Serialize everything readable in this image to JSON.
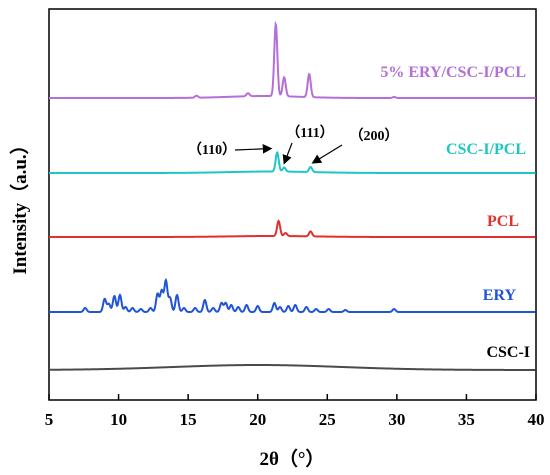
{
  "chart_data": {
    "type": "line",
    "xlabel": "2θ（°）",
    "ylabel": "Intensity（a.u.）",
    "xlim": [
      5,
      40
    ],
    "xticks": [
      5,
      10,
      15,
      20,
      25,
      30,
      35,
      40
    ],
    "grid": false,
    "series": [
      {
        "name": "CSC-I",
        "color": "#4a4a4a",
        "offset": 0,
        "baseline": 2,
        "hump": {
          "center": 20,
          "width": 6,
          "height": 5
        },
        "peaks": []
      },
      {
        "name": "ERY",
        "color": "#1f55d6",
        "offset": 58,
        "baseline": 2,
        "hump": null,
        "peaks": [
          {
            "x": 7.6,
            "h": 4
          },
          {
            "x": 9.0,
            "h": 13
          },
          {
            "x": 9.3,
            "h": 8
          },
          {
            "x": 9.7,
            "h": 16
          },
          {
            "x": 10.1,
            "h": 17
          },
          {
            "x": 10.5,
            "h": 5
          },
          {
            "x": 11.0,
            "h": 4
          },
          {
            "x": 11.6,
            "h": 3
          },
          {
            "x": 12.3,
            "h": 4
          },
          {
            "x": 12.8,
            "h": 18
          },
          {
            "x": 13.1,
            "h": 21
          },
          {
            "x": 13.4,
            "h": 31
          },
          {
            "x": 13.7,
            "h": 14
          },
          {
            "x": 14.2,
            "h": 17
          },
          {
            "x": 14.7,
            "h": 4
          },
          {
            "x": 15.5,
            "h": 4
          },
          {
            "x": 16.2,
            "h": 12
          },
          {
            "x": 16.8,
            "h": 4
          },
          {
            "x": 17.4,
            "h": 9
          },
          {
            "x": 17.7,
            "h": 9
          },
          {
            "x": 18.1,
            "h": 7
          },
          {
            "x": 18.6,
            "h": 5
          },
          {
            "x": 19.2,
            "h": 7
          },
          {
            "x": 20.0,
            "h": 6
          },
          {
            "x": 21.2,
            "h": 9
          },
          {
            "x": 21.6,
            "h": 5
          },
          {
            "x": 22.2,
            "h": 6
          },
          {
            "x": 22.7,
            "h": 7
          },
          {
            "x": 23.5,
            "h": 5
          },
          {
            "x": 24.2,
            "h": 3
          },
          {
            "x": 25.1,
            "h": 3
          },
          {
            "x": 26.3,
            "h": 2
          },
          {
            "x": 29.8,
            "h": 3
          }
        ]
      },
      {
        "name": "PCL",
        "color": "#e0312e",
        "offset": 133,
        "baseline": 2,
        "hump": {
          "center": 21,
          "width": 3,
          "height": 1
        },
        "peaks": [
          {
            "x": 21.5,
            "h": 15
          },
          {
            "x": 22.0,
            "h": 3
          },
          {
            "x": 23.8,
            "h": 5
          }
        ]
      },
      {
        "name": "CSC-I/PCL",
        "color": "#1fc6c6",
        "offset": 197,
        "baseline": 2,
        "hump": {
          "center": 21,
          "width": 3,
          "height": 1.5
        },
        "peaks": [
          {
            "x": 21.4,
            "h": 19
          },
          {
            "x": 21.9,
            "h": 4
          },
          {
            "x": 23.8,
            "h": 5
          }
        ]
      },
      {
        "name": "5% ERY/CSC-I/PCL",
        "color": "#b46fd8",
        "offset": 272,
        "baseline": 2,
        "hump": {
          "center": 20.5,
          "width": 2.5,
          "height": 2
        },
        "peaks": [
          {
            "x": 15.6,
            "h": 2
          },
          {
            "x": 19.3,
            "h": 3
          },
          {
            "x": 21.3,
            "h": 72
          },
          {
            "x": 21.9,
            "h": 19
          },
          {
            "x": 23.7,
            "h": 23
          },
          {
            "x": 29.8,
            "h": 1
          }
        ]
      }
    ],
    "annotations": [
      {
        "text": "（110）",
        "target_x": 21.4,
        "target_series": "CSC-I/PCL"
      },
      {
        "text": "（111）",
        "target_x": 21.9,
        "target_series": "CSC-I/PCL"
      },
      {
        "text": "（200）",
        "target_x": 23.8,
        "target_series": "CSC-I/PCL"
      }
    ]
  }
}
